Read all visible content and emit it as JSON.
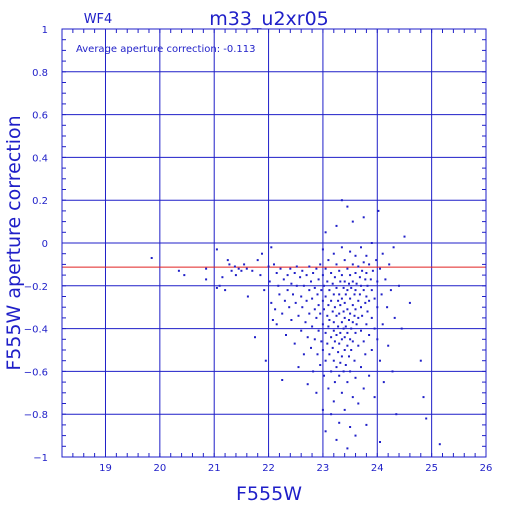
{
  "chart_data": {
    "type": "scatter",
    "corner_label": "WF4",
    "title": "m33_u2xr05",
    "annotation": "Average aperture correction: -0.113",
    "xlabel": "F555W",
    "ylabel": "F555W aperture correction",
    "xlim": [
      18.2,
      26
    ],
    "ylim": [
      -1,
      1
    ],
    "x_ticks": [
      19,
      20,
      21,
      22,
      23,
      24,
      25,
      26
    ],
    "y_ticks": [
      -1,
      -0.8,
      -0.6,
      -0.4,
      -0.2,
      0,
      0.2,
      0.4,
      0.6,
      0.8,
      1
    ],
    "x_tick_labels": [
      "19",
      "20",
      "21",
      "22",
      "23",
      "24",
      "25",
      "26"
    ],
    "y_tick_labels": [
      "−1",
      "−0.8",
      "−0.6",
      "−0.4",
      "−0.2",
      "0",
      "0.2",
      "0.4",
      "0.6",
      "0.8",
      "1"
    ],
    "grid": true,
    "reference_line": {
      "y": -0.113,
      "color": "#e02020"
    },
    "colors": {
      "axes": "#1f1fc8",
      "points": "#1f1fc8"
    },
    "series": [
      {
        "points": [
          [
            19.85,
            -0.07
          ],
          [
            20.35,
            -0.13
          ],
          [
            20.45,
            -0.15
          ],
          [
            20.85,
            -0.12
          ],
          [
            20.85,
            -0.17
          ],
          [
            21.05,
            -0.03
          ],
          [
            21.05,
            -0.21
          ],
          [
            21.1,
            -0.2
          ],
          [
            21.15,
            -0.16
          ],
          [
            21.2,
            -0.22
          ],
          [
            21.25,
            -0.08
          ],
          [
            21.28,
            -0.1
          ],
          [
            21.32,
            -0.13
          ],
          [
            21.38,
            -0.11
          ],
          [
            21.4,
            -0.15
          ],
          [
            21.45,
            -0.12
          ],
          [
            21.5,
            -0.13
          ],
          [
            21.55,
            -0.1
          ],
          [
            21.6,
            -0.12
          ],
          [
            21.62,
            -0.25
          ],
          [
            21.7,
            -0.13
          ],
          [
            21.75,
            -0.44
          ],
          [
            21.8,
            -0.08
          ],
          [
            21.85,
            -0.15
          ],
          [
            21.88,
            -0.05
          ],
          [
            21.92,
            -0.22
          ],
          [
            21.95,
            -0.55
          ],
          [
            22.0,
            -0.11
          ],
          [
            22.02,
            -0.18
          ],
          [
            22.05,
            -0.02
          ],
          [
            22.05,
            -0.28
          ],
          [
            22.08,
            -0.36
          ],
          [
            22.1,
            -0.1
          ],
          [
            22.12,
            -0.31
          ],
          [
            22.15,
            -0.14
          ],
          [
            22.15,
            -0.38
          ],
          [
            22.18,
            -0.2
          ],
          [
            22.2,
            -0.24
          ],
          [
            22.22,
            -0.12
          ],
          [
            22.25,
            -0.33
          ],
          [
            22.25,
            -0.64
          ],
          [
            22.28,
            -0.17
          ],
          [
            22.3,
            -0.27
          ],
          [
            22.32,
            -0.43
          ],
          [
            22.35,
            -0.15
          ],
          [
            22.35,
            -0.22
          ],
          [
            22.38,
            -0.3
          ],
          [
            22.4,
            -0.12
          ],
          [
            22.42,
            -0.19
          ],
          [
            22.42,
            -0.36
          ],
          [
            22.45,
            -0.24
          ],
          [
            22.48,
            -0.14
          ],
          [
            22.48,
            -0.47
          ],
          [
            22.5,
            -0.28
          ],
          [
            22.52,
            -0.11
          ],
          [
            22.52,
            -0.2
          ],
          [
            22.55,
            -0.34
          ],
          [
            22.55,
            -0.58
          ],
          [
            22.58,
            -0.16
          ],
          [
            22.6,
            -0.25
          ],
          [
            22.6,
            -0.41
          ],
          [
            22.62,
            -0.13
          ],
          [
            22.62,
            -0.3
          ],
          [
            22.65,
            -0.2
          ],
          [
            22.65,
            -0.52
          ],
          [
            22.68,
            -0.37
          ],
          [
            22.7,
            -0.15
          ],
          [
            22.7,
            -0.27
          ],
          [
            22.72,
            -0.44
          ],
          [
            22.72,
            -0.66
          ],
          [
            22.75,
            -0.11
          ],
          [
            22.75,
            -0.22
          ],
          [
            22.75,
            -0.33
          ],
          [
            22.78,
            -0.18
          ],
          [
            22.78,
            -0.49
          ],
          [
            22.8,
            -0.26
          ],
          [
            22.8,
            -0.39
          ],
          [
            22.82,
            -0.14
          ],
          [
            22.82,
            -0.6
          ],
          [
            22.85,
            -0.21
          ],
          [
            22.85,
            -0.31
          ],
          [
            22.85,
            -0.45
          ],
          [
            22.88,
            -0.12
          ],
          [
            22.88,
            -0.35
          ],
          [
            22.88,
            -0.7
          ],
          [
            22.9,
            -0.24
          ],
          [
            22.9,
            -0.52
          ],
          [
            22.92,
            -0.17
          ],
          [
            22.92,
            -0.29
          ],
          [
            22.92,
            -0.41
          ],
          [
            22.95,
            -0.1
          ],
          [
            22.95,
            -0.33
          ],
          [
            22.95,
            -0.57
          ],
          [
            22.97,
            -0.22
          ],
          [
            22.97,
            -0.46
          ],
          [
            23.0,
            -0.03
          ],
          [
            23.0,
            -0.15
          ],
          [
            23.0,
            -0.27
          ],
          [
            23.0,
            -0.38
          ],
          [
            23.0,
            -0.5
          ],
          [
            23.0,
            -0.78
          ],
          [
            23.02,
            -0.2
          ],
          [
            23.02,
            -0.31
          ],
          [
            23.02,
            -0.62
          ],
          [
            23.05,
            0.05
          ],
          [
            23.05,
            -0.12
          ],
          [
            23.05,
            -0.25
          ],
          [
            23.05,
            -0.42
          ],
          [
            23.05,
            -0.55
          ],
          [
            23.05,
            -0.88
          ],
          [
            23.08,
            -0.18
          ],
          [
            23.08,
            -0.34
          ],
          [
            23.08,
            -0.47
          ],
          [
            23.1,
            -0.08
          ],
          [
            23.1,
            -0.29
          ],
          [
            23.1,
            -0.39
          ],
          [
            23.1,
            -0.68
          ],
          [
            23.12,
            -0.22
          ],
          [
            23.12,
            -0.52
          ],
          [
            23.12,
            -0.36
          ],
          [
            23.15,
            -0.14
          ],
          [
            23.15,
            -0.27
          ],
          [
            23.15,
            -0.44
          ],
          [
            23.15,
            -0.6
          ],
          [
            23.15,
            -0.8
          ],
          [
            23.18,
            -0.19
          ],
          [
            23.18,
            -0.32
          ],
          [
            23.18,
            -0.49
          ],
          [
            23.2,
            -0.05
          ],
          [
            23.2,
            -0.24
          ],
          [
            23.2,
            -0.37
          ],
          [
            23.2,
            -0.41
          ],
          [
            23.2,
            -0.55
          ],
          [
            23.2,
            -0.74
          ],
          [
            23.22,
            -0.16
          ],
          [
            23.22,
            -0.3
          ],
          [
            23.22,
            -0.46
          ],
          [
            23.22,
            -0.65
          ],
          [
            23.25,
            0.08
          ],
          [
            23.25,
            -0.1
          ],
          [
            23.25,
            -0.21
          ],
          [
            23.25,
            -0.34
          ],
          [
            23.25,
            -0.43
          ],
          [
            23.25,
            -0.58
          ],
          [
            23.25,
            -0.92
          ],
          [
            23.28,
            -0.27
          ],
          [
            23.28,
            -0.39
          ],
          [
            23.28,
            -0.51
          ],
          [
            23.3,
            -0.13
          ],
          [
            23.3,
            -0.24
          ],
          [
            23.3,
            -0.33
          ],
          [
            23.3,
            -0.47
          ],
          [
            23.3,
            -0.62
          ],
          [
            23.3,
            -0.84
          ],
          [
            23.32,
            -0.18
          ],
          [
            23.32,
            -0.29
          ],
          [
            23.32,
            -0.42
          ],
          [
            23.32,
            -0.56
          ],
          [
            23.35,
            0.2
          ],
          [
            23.35,
            -0.02
          ],
          [
            23.35,
            -0.15
          ],
          [
            23.35,
            -0.26
          ],
          [
            23.35,
            -0.37
          ],
          [
            23.35,
            -0.45
          ],
          [
            23.35,
            -0.53
          ],
          [
            23.35,
            -0.7
          ],
          [
            23.38,
            -0.21
          ],
          [
            23.38,
            -0.32
          ],
          [
            23.38,
            -0.4
          ],
          [
            23.38,
            -0.6
          ],
          [
            23.4,
            -0.08
          ],
          [
            23.4,
            -0.18
          ],
          [
            23.4,
            -0.28
          ],
          [
            23.4,
            -0.35
          ],
          [
            23.4,
            -0.44
          ],
          [
            23.4,
            -0.5
          ],
          [
            23.4,
            -0.78
          ],
          [
            23.42,
            -0.24
          ],
          [
            23.42,
            -0.39
          ],
          [
            23.42,
            -0.57
          ],
          [
            23.45,
            0.17
          ],
          [
            23.45,
            -0.12
          ],
          [
            23.45,
            -0.22
          ],
          [
            23.45,
            -0.31
          ],
          [
            23.45,
            -0.42
          ],
          [
            23.45,
            -0.48
          ],
          [
            23.45,
            -0.65
          ],
          [
            23.45,
            -0.96
          ],
          [
            23.48,
            -0.19
          ],
          [
            23.48,
            -0.36
          ],
          [
            23.48,
            -0.53
          ],
          [
            23.5,
            -0.04
          ],
          [
            23.5,
            -0.15
          ],
          [
            23.5,
            -0.26
          ],
          [
            23.5,
            -0.33
          ],
          [
            23.5,
            -0.45
          ],
          [
            23.5,
            -0.6
          ],
          [
            23.5,
            -0.86
          ],
          [
            23.52,
            -0.21
          ],
          [
            23.52,
            -0.4
          ],
          [
            23.52,
            -0.5
          ],
          [
            23.55,
            0.1
          ],
          [
            23.55,
            -0.1
          ],
          [
            23.55,
            -0.18
          ],
          [
            23.55,
            -0.29
          ],
          [
            23.55,
            -0.37
          ],
          [
            23.55,
            -0.46
          ],
          [
            23.55,
            -0.72
          ],
          [
            23.58,
            -0.24
          ],
          [
            23.58,
            -0.34
          ],
          [
            23.58,
            -0.55
          ],
          [
            23.6,
            -0.06
          ],
          [
            23.6,
            -0.14
          ],
          [
            23.6,
            -0.22
          ],
          [
            23.6,
            -0.31
          ],
          [
            23.6,
            -0.42
          ],
          [
            23.6,
            -0.63
          ],
          [
            23.6,
            -0.9
          ],
          [
            23.62,
            -0.19
          ],
          [
            23.62,
            -0.38
          ],
          [
            23.65,
            -0.11
          ],
          [
            23.65,
            -0.27
          ],
          [
            23.65,
            -0.35
          ],
          [
            23.65,
            -0.48
          ],
          [
            23.65,
            -0.75
          ],
          [
            23.68,
            -0.16
          ],
          [
            23.68,
            -0.24
          ],
          [
            23.7,
            -0.02
          ],
          [
            23.7,
            -0.2
          ],
          [
            23.7,
            -0.3
          ],
          [
            23.7,
            -0.41
          ],
          [
            23.7,
            -0.58
          ],
          [
            23.72,
            -0.13
          ],
          [
            23.72,
            -0.34
          ],
          [
            23.75,
            0.12
          ],
          [
            23.75,
            -0.09
          ],
          [
            23.75,
            -0.22
          ],
          [
            23.75,
            -0.46
          ],
          [
            23.75,
            -0.68
          ],
          [
            23.78,
            -0.17
          ],
          [
            23.78,
            -0.28
          ],
          [
            23.78,
            -0.52
          ],
          [
            23.8,
            -0.06
          ],
          [
            23.8,
            -0.14
          ],
          [
            23.8,
            -0.25
          ],
          [
            23.8,
            -0.38
          ],
          [
            23.8,
            -0.85
          ],
          [
            23.82,
            -0.2
          ],
          [
            23.82,
            -0.32
          ],
          [
            23.85,
            -0.1
          ],
          [
            23.85,
            -0.27
          ],
          [
            23.85,
            -0.43
          ],
          [
            23.85,
            -0.62
          ],
          [
            23.88,
            -0.17
          ],
          [
            23.9,
            0.0
          ],
          [
            23.9,
            -0.22
          ],
          [
            23.9,
            -0.35
          ],
          [
            23.9,
            -0.5
          ],
          [
            23.92,
            -0.13
          ],
          [
            23.95,
            -0.26
          ],
          [
            23.95,
            -0.4
          ],
          [
            23.95,
            -0.72
          ],
          [
            23.98,
            -0.08
          ],
          [
            24.0,
            -0.18
          ],
          [
            24.0,
            -0.3
          ],
          [
            24.0,
            -0.45
          ],
          [
            24.02,
            0.15
          ],
          [
            24.05,
            -0.12
          ],
          [
            24.05,
            -0.55
          ],
          [
            24.05,
            -0.93
          ],
          [
            24.08,
            -0.24
          ],
          [
            24.1,
            -0.05
          ],
          [
            24.1,
            -0.38
          ],
          [
            24.12,
            -0.65
          ],
          [
            24.15,
            -0.17
          ],
          [
            24.18,
            -0.3
          ],
          [
            24.2,
            -0.48
          ],
          [
            24.22,
            -0.1
          ],
          [
            24.25,
            -0.22
          ],
          [
            24.28,
            -0.6
          ],
          [
            24.3,
            -0.02
          ],
          [
            24.32,
            -0.35
          ],
          [
            24.35,
            -0.8
          ],
          [
            24.4,
            -0.2
          ],
          [
            24.45,
            -0.4
          ],
          [
            24.5,
            0.03
          ],
          [
            24.6,
            -0.28
          ],
          [
            24.8,
            -0.55
          ],
          [
            24.85,
            -0.72
          ],
          [
            24.9,
            -0.82
          ],
          [
            25.15,
            -0.94
          ]
        ]
      }
    ]
  }
}
